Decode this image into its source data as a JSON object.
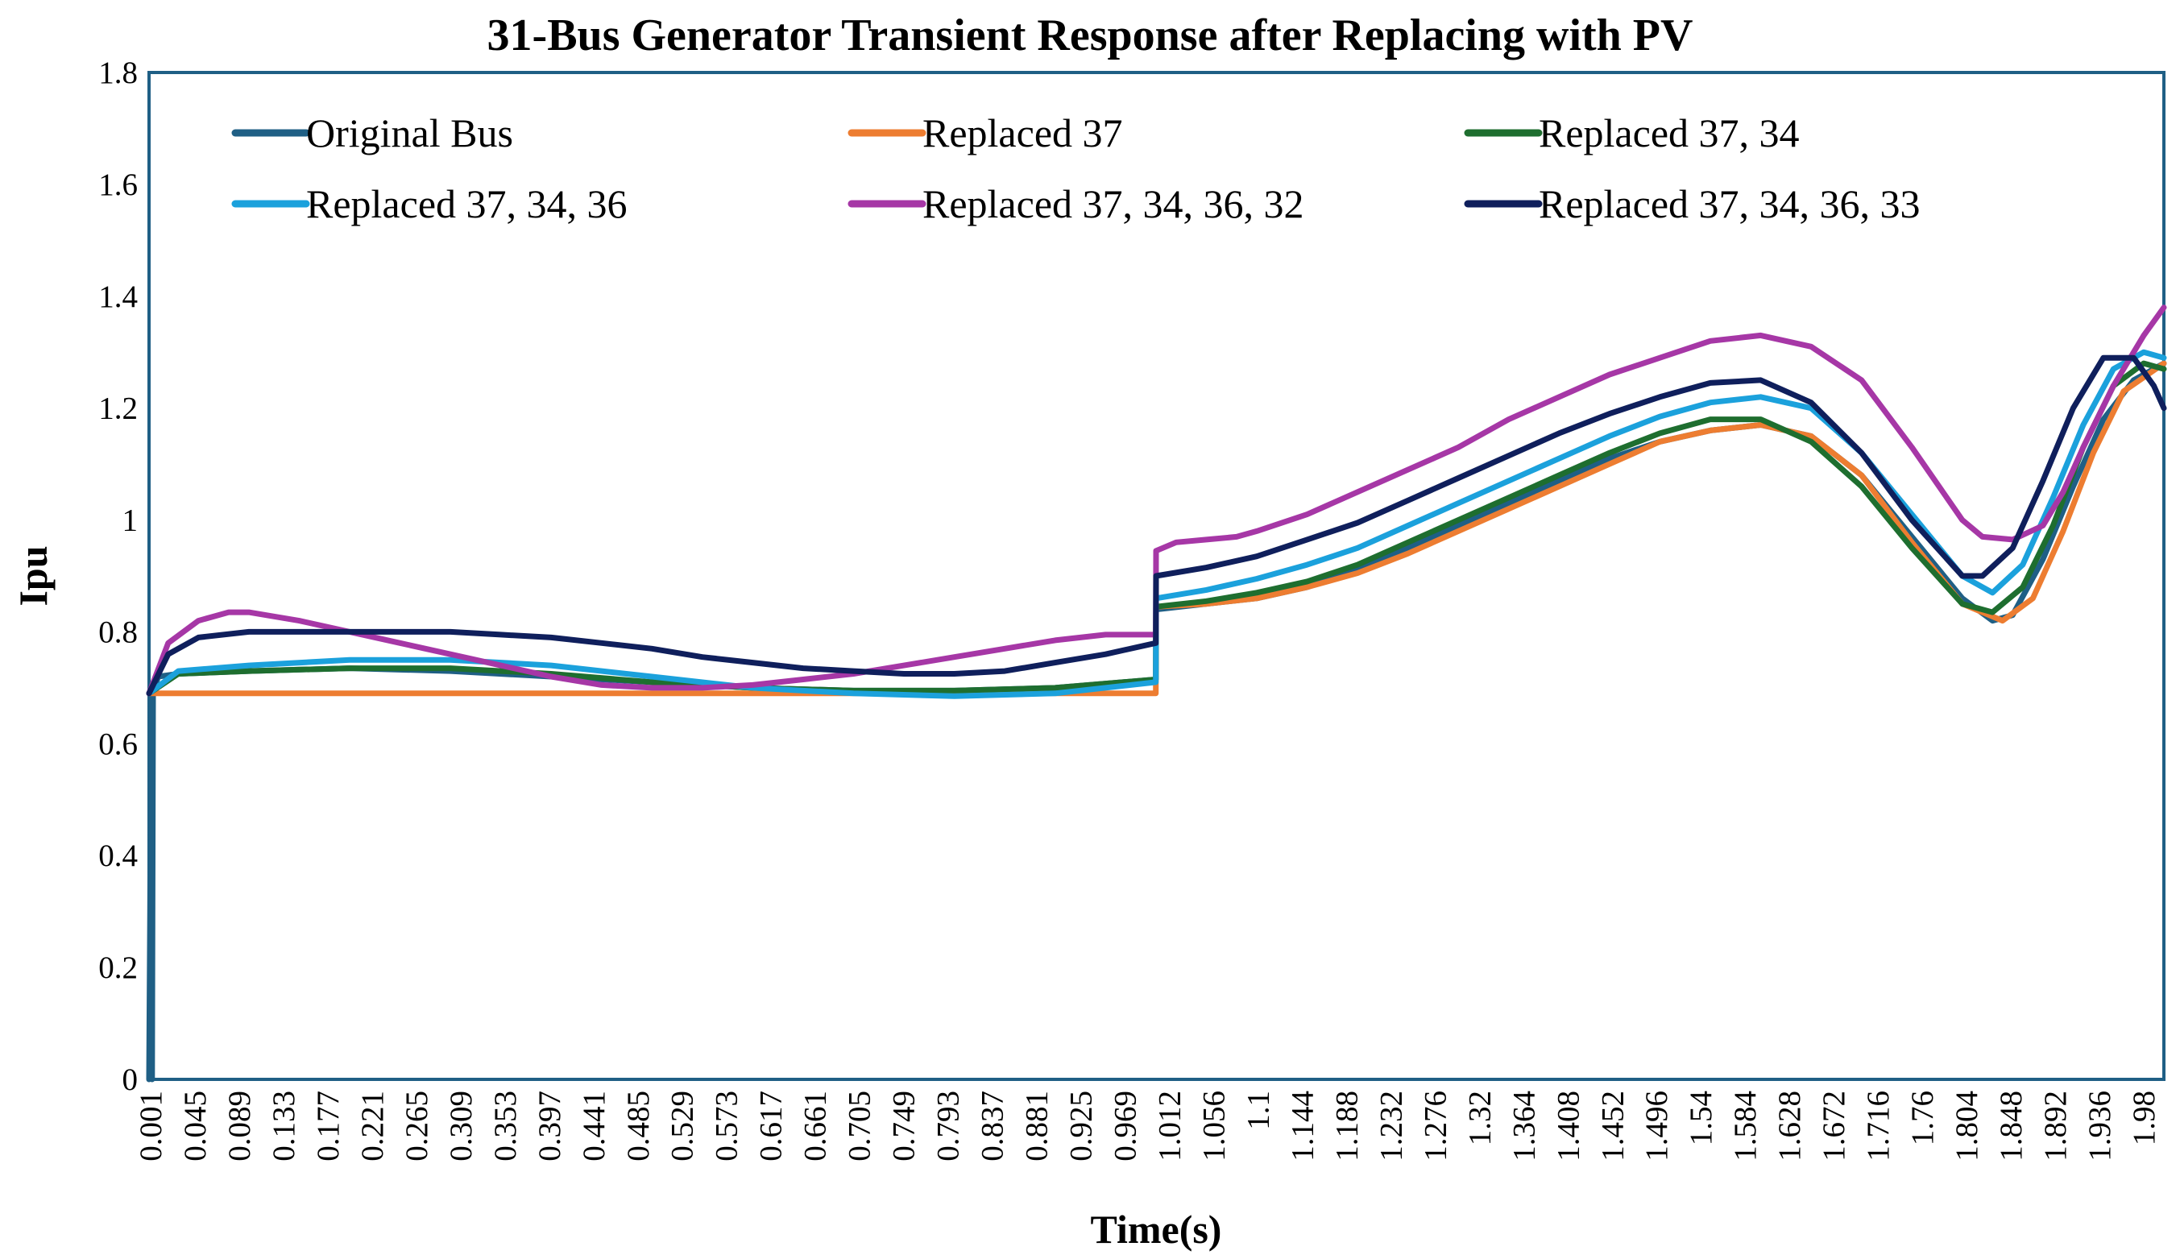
{
  "chart_data": {
    "type": "line",
    "title": "31-Bus Generator Transient Response after Replacing with PV",
    "xlabel": "Time(s)",
    "ylabel": "Ipu",
    "xlim": [
      0.001,
      2.0
    ],
    "ylim": [
      0,
      1.8
    ],
    "y_ticks": [
      0,
      0.2,
      0.4,
      0.6,
      0.8,
      1,
      1.2,
      1.4,
      1.6,
      1.8
    ],
    "x_tick_labels": [
      "0.001",
      "0.045",
      "0.089",
      "0.133",
      "0.177",
      "0.221",
      "0.265",
      "0.309",
      "0.353",
      "0.397",
      "0.441",
      "0.485",
      "0.529",
      "0.573",
      "0.617",
      "0.661",
      "0.705",
      "0.749",
      "0.793",
      "0.837",
      "0.881",
      "0.925",
      "0.969",
      "1.012",
      "1.056",
      "1.1",
      "1.144",
      "1.188",
      "1.232",
      "1.276",
      "1.32",
      "1.364",
      "1.408",
      "1.452",
      "1.496",
      "1.54",
      "1.584",
      "1.628",
      "1.672",
      "1.716",
      "1.76",
      "1.804",
      "1.848",
      "1.892",
      "1.936",
      "1.98"
    ],
    "legend_position": "top, inside plot, 3 columns",
    "series": [
      {
        "name": "Original Bus",
        "color": "#1f5f85",
        "x": [
          0.001,
          0.002,
          0.003,
          0.004,
          0.005,
          0.01,
          0.03,
          0.1,
          0.2,
          0.3,
          0.4,
          0.5,
          0.6,
          0.7,
          0.8,
          0.9,
          0.9999,
          1.0001,
          1.05,
          1.1,
          1.15,
          1.2,
          1.25,
          1.3,
          1.35,
          1.4,
          1.45,
          1.5,
          1.55,
          1.6,
          1.65,
          1.7,
          1.75,
          1.8,
          1.83,
          1.85,
          1.88,
          1.91,
          1.94,
          1.97,
          2.0
        ],
        "y": [
          0.0,
          0.3,
          0.68,
          0.0,
          0.69,
          0.72,
          0.725,
          0.73,
          0.735,
          0.73,
          0.72,
          0.71,
          0.7,
          0.695,
          0.695,
          0.7,
          0.715,
          0.84,
          0.85,
          0.86,
          0.88,
          0.91,
          0.95,
          0.99,
          1.03,
          1.07,
          1.11,
          1.14,
          1.16,
          1.17,
          1.15,
          1.08,
          0.97,
          0.86,
          0.82,
          0.83,
          0.93,
          1.06,
          1.18,
          1.25,
          1.28
        ]
      },
      {
        "name": "Replaced 37",
        "color": "#ed7d31",
        "x": [
          0.001,
          0.005,
          0.1,
          0.2,
          0.3,
          0.4,
          0.5,
          0.6,
          0.7,
          0.8,
          0.9,
          0.9999,
          1.0001,
          1.05,
          1.1,
          1.15,
          1.2,
          1.25,
          1.3,
          1.35,
          1.4,
          1.45,
          1.5,
          1.55,
          1.6,
          1.65,
          1.7,
          1.75,
          1.8,
          1.84,
          1.87,
          1.9,
          1.93,
          1.96,
          2.0
        ],
        "y": [
          0.69,
          0.69,
          0.69,
          0.69,
          0.69,
          0.69,
          0.69,
          0.69,
          0.69,
          0.69,
          0.69,
          0.69,
          0.845,
          0.85,
          0.86,
          0.88,
          0.905,
          0.94,
          0.98,
          1.02,
          1.06,
          1.1,
          1.14,
          1.16,
          1.17,
          1.15,
          1.08,
          0.96,
          0.85,
          0.82,
          0.86,
          0.98,
          1.12,
          1.23,
          1.28
        ]
      },
      {
        "name": "Replaced 37, 34",
        "color": "#1e6e2f",
        "x": [
          0.001,
          0.03,
          0.1,
          0.2,
          0.3,
          0.4,
          0.5,
          0.6,
          0.7,
          0.8,
          0.9,
          0.9999,
          1.0001,
          1.05,
          1.1,
          1.15,
          1.2,
          1.25,
          1.3,
          1.35,
          1.4,
          1.45,
          1.5,
          1.55,
          1.6,
          1.65,
          1.7,
          1.75,
          1.8,
          1.83,
          1.86,
          1.89,
          1.92,
          1.95,
          1.98,
          2.0
        ],
        "y": [
          0.69,
          0.725,
          0.73,
          0.735,
          0.735,
          0.725,
          0.71,
          0.7,
          0.695,
          0.695,
          0.7,
          0.715,
          0.845,
          0.855,
          0.87,
          0.89,
          0.92,
          0.96,
          1.0,
          1.04,
          1.08,
          1.12,
          1.155,
          1.18,
          1.18,
          1.14,
          1.06,
          0.95,
          0.85,
          0.835,
          0.88,
          0.99,
          1.13,
          1.24,
          1.28,
          1.27
        ]
      },
      {
        "name": "Replaced 37, 34, 36",
        "color": "#1ba1dc",
        "x": [
          0.001,
          0.03,
          0.1,
          0.2,
          0.3,
          0.4,
          0.5,
          0.6,
          0.7,
          0.8,
          0.9,
          0.9999,
          1.0001,
          1.05,
          1.1,
          1.15,
          1.2,
          1.25,
          1.3,
          1.35,
          1.4,
          1.45,
          1.5,
          1.55,
          1.6,
          1.65,
          1.7,
          1.75,
          1.8,
          1.83,
          1.86,
          1.89,
          1.92,
          1.95,
          1.98,
          2.0
        ],
        "y": [
          0.69,
          0.73,
          0.74,
          0.75,
          0.75,
          0.74,
          0.72,
          0.7,
          0.69,
          0.685,
          0.69,
          0.71,
          0.86,
          0.875,
          0.895,
          0.92,
          0.95,
          0.99,
          1.03,
          1.07,
          1.11,
          1.15,
          1.185,
          1.21,
          1.22,
          1.2,
          1.12,
          1.01,
          0.9,
          0.87,
          0.92,
          1.04,
          1.17,
          1.27,
          1.3,
          1.29
        ]
      },
      {
        "name": "Replaced 37, 34, 36, 32",
        "color": "#a637a6",
        "x": [
          0.001,
          0.02,
          0.05,
          0.08,
          0.1,
          0.15,
          0.2,
          0.25,
          0.3,
          0.35,
          0.4,
          0.45,
          0.5,
          0.55,
          0.6,
          0.65,
          0.7,
          0.75,
          0.8,
          0.85,
          0.9,
          0.95,
          0.9999,
          1.0001,
          1.02,
          1.05,
          1.08,
          1.1,
          1.15,
          1.2,
          1.25,
          1.3,
          1.35,
          1.4,
          1.45,
          1.5,
          1.55,
          1.6,
          1.65,
          1.7,
          1.75,
          1.8,
          1.82,
          1.85,
          1.88,
          1.9,
          1.92,
          1.95,
          1.98,
          2.0
        ],
        "y": [
          0.69,
          0.78,
          0.82,
          0.835,
          0.835,
          0.82,
          0.8,
          0.78,
          0.76,
          0.74,
          0.72,
          0.705,
          0.7,
          0.7,
          0.705,
          0.715,
          0.725,
          0.74,
          0.755,
          0.77,
          0.785,
          0.795,
          0.795,
          0.945,
          0.96,
          0.965,
          0.97,
          0.98,
          1.01,
          1.05,
          1.09,
          1.13,
          1.18,
          1.22,
          1.26,
          1.29,
          1.32,
          1.33,
          1.31,
          1.25,
          1.13,
          1.0,
          0.97,
          0.965,
          0.99,
          1.05,
          1.13,
          1.24,
          1.33,
          1.38
        ]
      },
      {
        "name": "Replaced 37, 34, 36, 33",
        "color": "#0f1f5c",
        "x": [
          0.001,
          0.02,
          0.05,
          0.1,
          0.15,
          0.2,
          0.25,
          0.3,
          0.35,
          0.4,
          0.45,
          0.5,
          0.55,
          0.6,
          0.65,
          0.7,
          0.75,
          0.8,
          0.85,
          0.9,
          0.95,
          0.9999,
          1.0001,
          1.05,
          1.1,
          1.15,
          1.2,
          1.25,
          1.3,
          1.35,
          1.4,
          1.45,
          1.5,
          1.55,
          1.6,
          1.65,
          1.7,
          1.75,
          1.8,
          1.82,
          1.85,
          1.88,
          1.91,
          1.94,
          1.97,
          1.99,
          2.0
        ],
        "y": [
          0.69,
          0.76,
          0.79,
          0.8,
          0.8,
          0.8,
          0.8,
          0.8,
          0.795,
          0.79,
          0.78,
          0.77,
          0.755,
          0.745,
          0.735,
          0.73,
          0.725,
          0.725,
          0.73,
          0.745,
          0.76,
          0.78,
          0.9,
          0.915,
          0.935,
          0.965,
          0.995,
          1.035,
          1.075,
          1.115,
          1.155,
          1.19,
          1.22,
          1.245,
          1.25,
          1.21,
          1.12,
          1.0,
          0.9,
          0.9,
          0.95,
          1.07,
          1.2,
          1.29,
          1.29,
          1.24,
          1.2
        ]
      }
    ]
  }
}
